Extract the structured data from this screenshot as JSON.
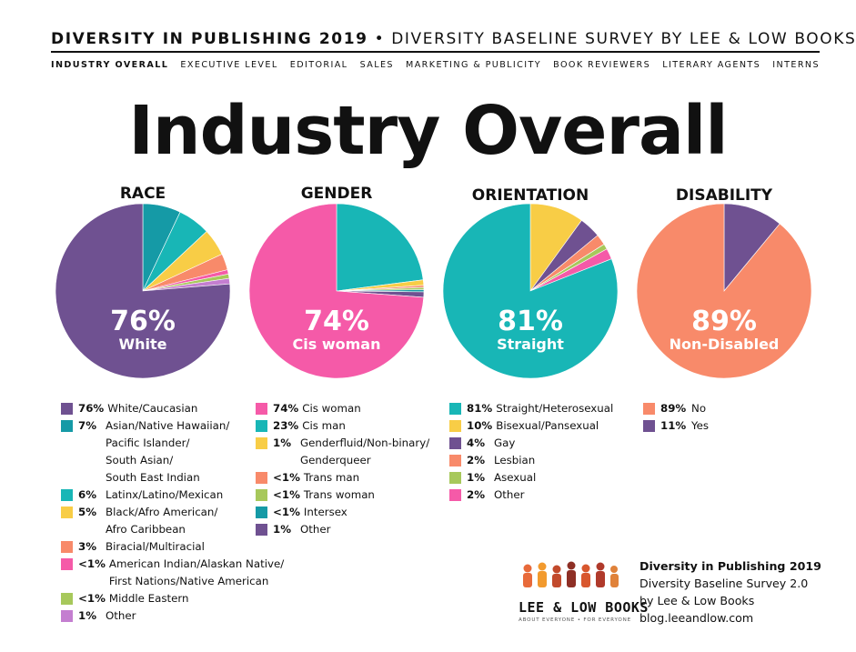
{
  "header": {
    "title_bold": "DIVERSITY IN PUBLISHING 2019",
    "separator": "•",
    "title_rest": "DIVERSITY BASELINE SURVEY BY LEE & LOW BOOKS"
  },
  "nav": {
    "items": [
      "INDUSTRY OVERALL",
      "EXECUTIVE LEVEL",
      "EDITORIAL",
      "SALES",
      "MARKETING & PUBLICITY",
      "BOOK REVIEWERS",
      "LITERARY AGENTS",
      "INTERNS"
    ],
    "active": "INDUSTRY OVERALL"
  },
  "page_title": "Industry Overall",
  "colors": {
    "purple": "#6f5191",
    "teal": "#159aa6",
    "cyan": "#18b6b6",
    "yellow": "#f8cd46",
    "salmon": "#f88a6a",
    "pink": "#f55aa8",
    "lime": "#a7c85b",
    "lilac": "#c47ed0"
  },
  "chart_data": [
    {
      "type": "pie",
      "title": "RACE",
      "center_value": "76%",
      "center_label": "White",
      "slices": [
        {
          "pct_label": "76%",
          "label": "White/Caucasian",
          "value": 76,
          "color": "#6f5191"
        },
        {
          "pct_label": "7%",
          "label": "Asian/Native Hawaiian/ Pacific Islander/ South Asian/ South East Indian",
          "label_lines": [
            "Asian/Native Hawaiian/",
            "Pacific Islander/",
            "South Asian/",
            "South East Indian"
          ],
          "value": 7,
          "color": "#159aa6"
        },
        {
          "pct_label": "6%",
          "label": "Latinx/Latino/Mexican",
          "value": 6,
          "color": "#18b6b6"
        },
        {
          "pct_label": "5%",
          "label": "Black/Afro American/ Afro Caribbean",
          "label_lines": [
            "Black/Afro American/",
            "Afro Caribbean"
          ],
          "value": 5,
          "color": "#f8cd46"
        },
        {
          "pct_label": "3%",
          "label": "Biracial/Multiracial",
          "value": 3,
          "color": "#f88a6a"
        },
        {
          "pct_label": "<1%",
          "label": "American Indian/Alaskan Native/ First Nations/Native American",
          "label_lines": [
            "American Indian/Alaskan Native/",
            "First Nations/Native American"
          ],
          "value": 0.8,
          "color": "#f55aa8"
        },
        {
          "pct_label": "<1%",
          "label": "Middle Eastern",
          "value": 0.8,
          "color": "#a7c85b"
        },
        {
          "pct_label": "1%",
          "label": "Other",
          "value": 1,
          "color": "#c47ed0"
        }
      ]
    },
    {
      "type": "pie",
      "title": "GENDER",
      "center_value": "74%",
      "center_label": "Cis woman",
      "slices": [
        {
          "pct_label": "74%",
          "label": "Cis woman",
          "value": 74,
          "color": "#f55aa8"
        },
        {
          "pct_label": "23%",
          "label": "Cis man",
          "value": 23,
          "color": "#18b6b6"
        },
        {
          "pct_label": "1%",
          "label": "Genderfluid/Non-binary/ Genderqueer",
          "label_lines": [
            "Genderfluid/Non-binary/",
            "Genderqueer"
          ],
          "value": 1,
          "color": "#f8cd46"
        },
        {
          "pct_label": "<1%",
          "label": "Trans man",
          "value": 0.4,
          "color": "#f88a6a"
        },
        {
          "pct_label": "<1%",
          "label": "Trans woman",
          "value": 0.4,
          "color": "#a7c85b"
        },
        {
          "pct_label": "<1%",
          "label": "Intersex",
          "value": 0.4,
          "color": "#159aa6"
        },
        {
          "pct_label": "1%",
          "label": "Other",
          "value": 1,
          "color": "#6f5191"
        }
      ]
    },
    {
      "type": "pie",
      "title": "ORIENTATION",
      "center_value": "81%",
      "center_label": "Straight",
      "slices": [
        {
          "pct_label": "81%",
          "label": "Straight/Heterosexual",
          "value": 81,
          "color": "#18b6b6"
        },
        {
          "pct_label": "10%",
          "label": "Bisexual/Pansexual",
          "value": 10,
          "color": "#f8cd46"
        },
        {
          "pct_label": "4%",
          "label": "Gay",
          "value": 4,
          "color": "#6f5191"
        },
        {
          "pct_label": "2%",
          "label": "Lesbian",
          "value": 2,
          "color": "#f88a6a"
        },
        {
          "pct_label": "1%",
          "label": "Asexual",
          "value": 1,
          "color": "#a7c85b"
        },
        {
          "pct_label": "2%",
          "label": "Other",
          "value": 2,
          "color": "#f55aa8"
        }
      ]
    },
    {
      "type": "pie",
      "title": "DISABILITY",
      "center_value": "89%",
      "center_label": "Non-Disabled",
      "slices": [
        {
          "pct_label": "89%",
          "label": "No",
          "value": 89,
          "color": "#f88a6a"
        },
        {
          "pct_label": "11%",
          "label": "Yes",
          "value": 11,
          "color": "#6f5191"
        }
      ]
    }
  ],
  "brand": {
    "name": "LEE & LOW BOOKS",
    "tagline": "ABOUT EVERYONE • FOR EVERYONE"
  },
  "credit": {
    "title": "Diversity in Publishing 2019",
    "line2": "Diversity Baseline Survey 2.0",
    "line3": "by Lee & Low Books",
    "line4": "blog.leeandlow.com"
  }
}
